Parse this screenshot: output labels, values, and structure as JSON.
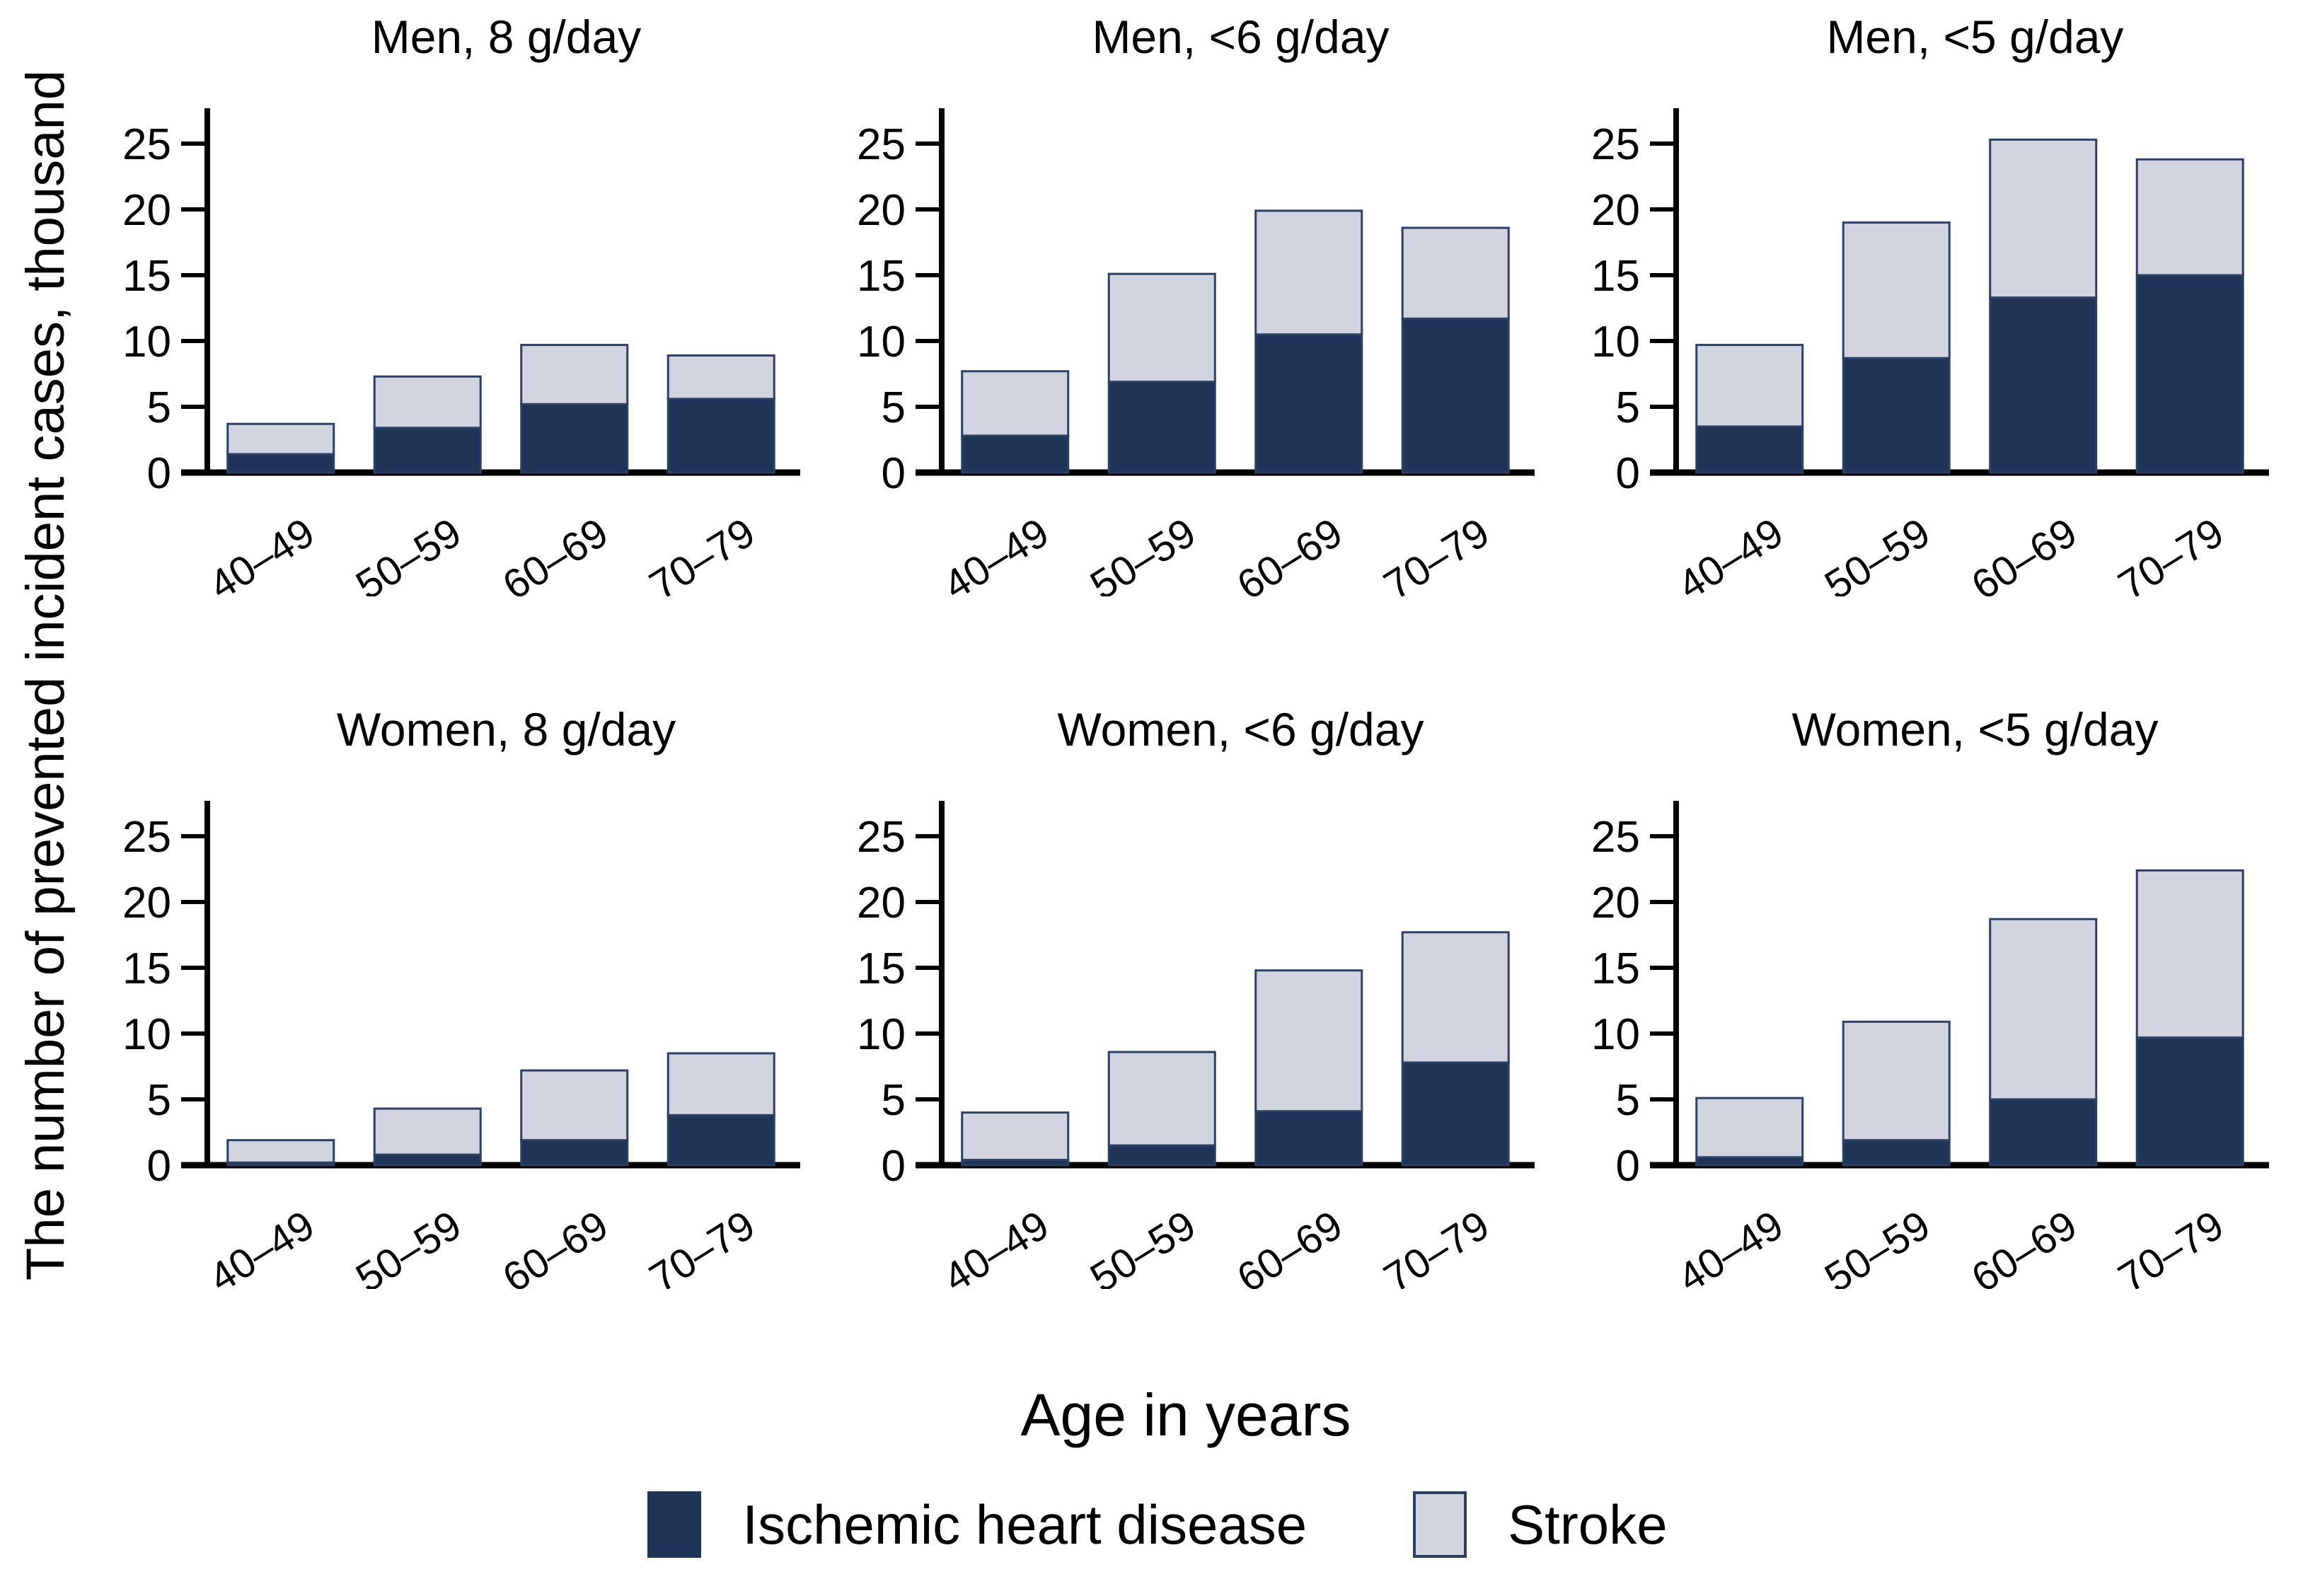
{
  "figure": {
    "y_axis_label": "The number of prevented incident cases, thousand",
    "x_axis_label": "Age in years",
    "legend": [
      {
        "label": "Ischemic heart disease",
        "color": "#1f3456"
      },
      {
        "label": "Stroke",
        "color": "#d2d5df"
      }
    ],
    "colors": {
      "ihd_fill": "#1f3456",
      "stroke_fill": "#d2d5df",
      "bar_border": "#2c4066",
      "axis": "#000000",
      "text": "#000000",
      "background": "#ffffff"
    }
  },
  "chart_data": [
    {
      "type": "bar",
      "stacked": true,
      "title": "Men, 8 g/day",
      "categories": [
        "40–49",
        "50–59",
        "60–69",
        "70–79"
      ],
      "series": [
        {
          "name": "Ischemic heart disease",
          "values": [
            1.4,
            3.4,
            5.2,
            5.6
          ]
        },
        {
          "name": "Stroke",
          "values": [
            2.3,
            3.9,
            4.5,
            3.3
          ]
        }
      ],
      "totals": [
        3.7,
        7.3,
        9.7,
        8.9
      ],
      "ylim": [
        0,
        27.7
      ],
      "yticks": [
        0,
        5,
        10,
        15,
        20,
        25
      ],
      "grid": false
    },
    {
      "type": "bar",
      "stacked": true,
      "title": "Men, <6 g/day",
      "categories": [
        "40–49",
        "50–59",
        "60–69",
        "70–79"
      ],
      "series": [
        {
          "name": "Ischemic heart disease",
          "values": [
            2.8,
            6.9,
            10.5,
            11.7
          ]
        },
        {
          "name": "Stroke",
          "values": [
            4.9,
            8.2,
            9.4,
            6.9
          ]
        }
      ],
      "totals": [
        7.7,
        15.1,
        19.9,
        18.6
      ],
      "ylim": [
        0,
        27.7
      ],
      "yticks": [
        0,
        5,
        10,
        15,
        20,
        25
      ],
      "grid": false
    },
    {
      "type": "bar",
      "stacked": true,
      "title": "Men, <5 g/day",
      "categories": [
        "40–49",
        "50–59",
        "60–69",
        "70–79"
      ],
      "series": [
        {
          "name": "Ischemic heart disease",
          "values": [
            3.5,
            8.7,
            13.3,
            15.0
          ]
        },
        {
          "name": "Stroke",
          "values": [
            6.2,
            10.3,
            12.0,
            8.8
          ]
        }
      ],
      "totals": [
        9.7,
        19.0,
        25.3,
        23.8
      ],
      "ylim": [
        0,
        27.7
      ],
      "yticks": [
        0,
        5,
        10,
        15,
        20,
        25
      ],
      "grid": false
    },
    {
      "type": "bar",
      "stacked": true,
      "title": "Women, 8 g/day",
      "categories": [
        "40–49",
        "50–59",
        "60–69",
        "70–79"
      ],
      "series": [
        {
          "name": "Ischemic heart disease",
          "values": [
            0.2,
            0.8,
            1.9,
            3.8
          ]
        },
        {
          "name": "Stroke",
          "values": [
            1.7,
            3.5,
            5.3,
            4.7
          ]
        }
      ],
      "totals": [
        1.9,
        4.3,
        7.2,
        8.5
      ],
      "ylim": [
        0,
        27.7
      ],
      "yticks": [
        0,
        5,
        10,
        15,
        20,
        25
      ],
      "grid": false
    },
    {
      "type": "bar",
      "stacked": true,
      "title": "Women, <6 g/day",
      "categories": [
        "40–49",
        "50–59",
        "60–69",
        "70–79"
      ],
      "series": [
        {
          "name": "Ischemic heart disease",
          "values": [
            0.4,
            1.5,
            4.1,
            7.8
          ]
        },
        {
          "name": "Stroke",
          "values": [
            3.6,
            7.1,
            10.7,
            9.9
          ]
        }
      ],
      "totals": [
        4.0,
        8.6,
        14.8,
        17.7
      ],
      "ylim": [
        0,
        27.7
      ],
      "yticks": [
        0,
        5,
        10,
        15,
        20,
        25
      ],
      "grid": false
    },
    {
      "type": "bar",
      "stacked": true,
      "title": "Women, <5 g/day",
      "categories": [
        "40–49",
        "50–59",
        "60–69",
        "70–79"
      ],
      "series": [
        {
          "name": "Ischemic heart disease",
          "values": [
            0.6,
            1.9,
            5.0,
            9.7
          ]
        },
        {
          "name": "Stroke",
          "values": [
            4.5,
            9.0,
            13.7,
            12.7
          ]
        }
      ],
      "totals": [
        5.1,
        10.9,
        18.7,
        22.4
      ],
      "ylim": [
        0,
        27.7
      ],
      "yticks": [
        0,
        5,
        10,
        15,
        20,
        25
      ],
      "grid": false
    }
  ]
}
